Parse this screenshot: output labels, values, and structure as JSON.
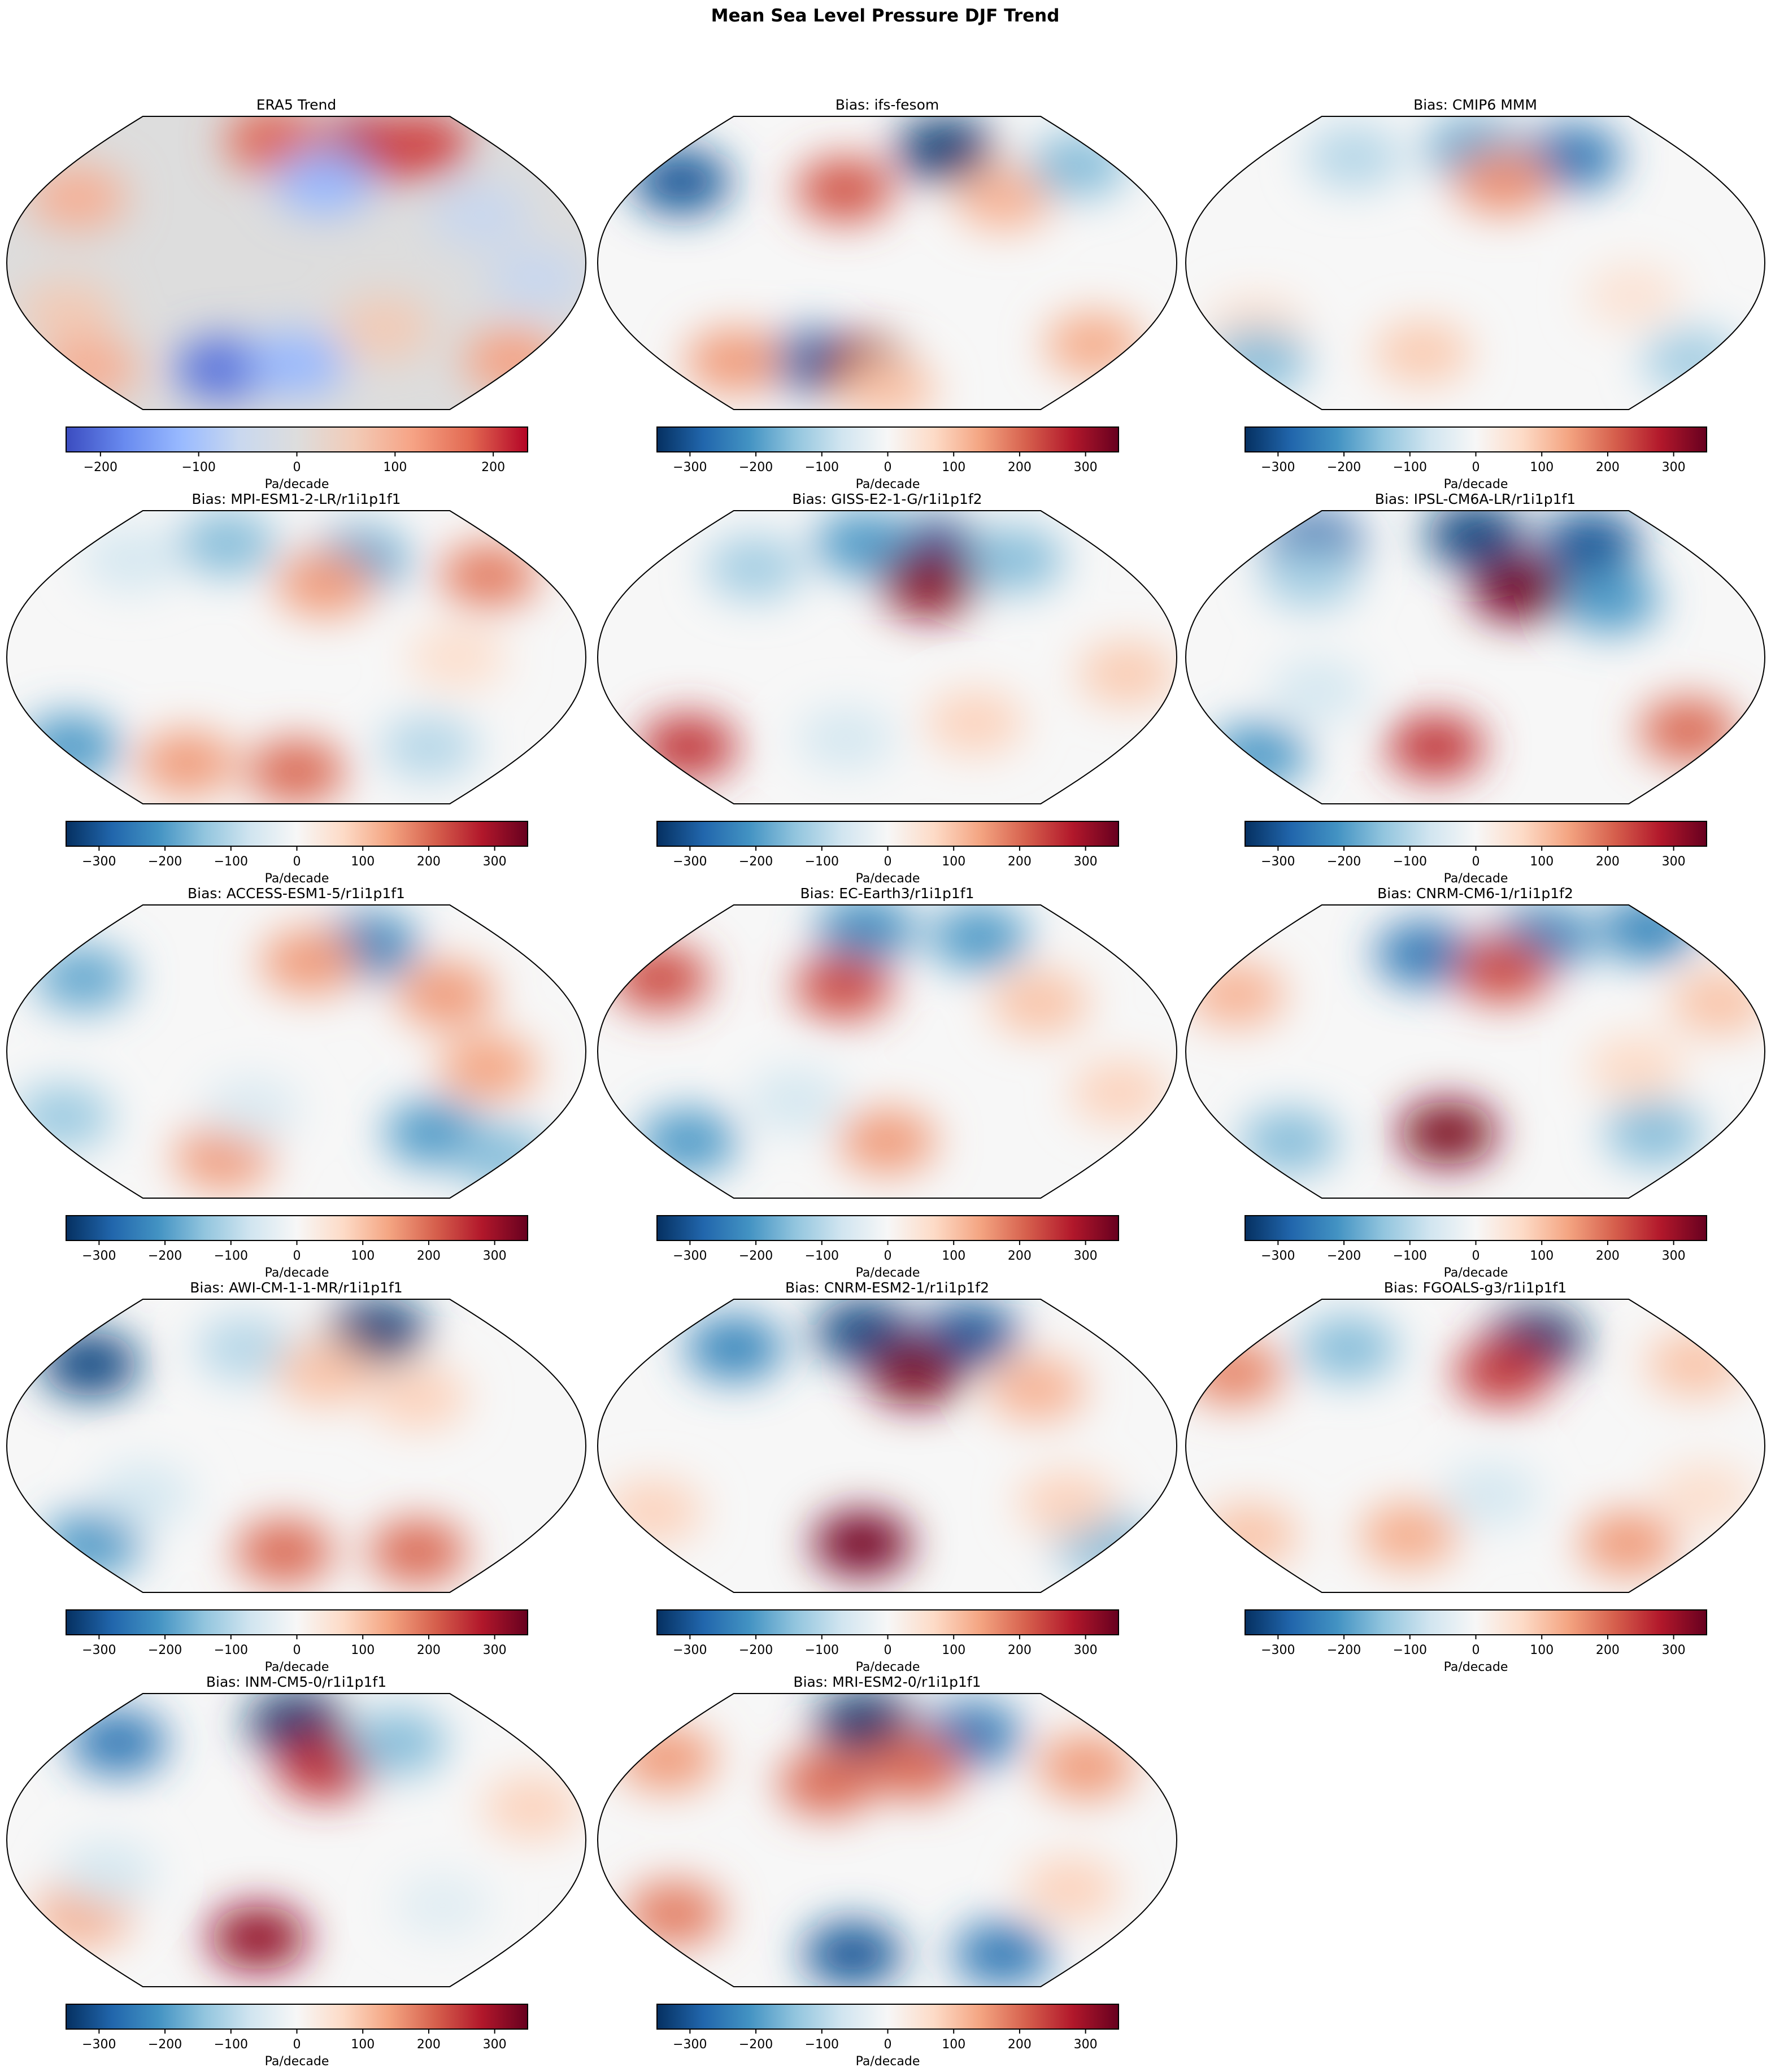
{
  "figure": {
    "title": "Mean Sea Level Pressure DJF Trend"
  },
  "colormaps": {
    "coolwarm": [
      "#3b4cc0",
      "#688aef",
      "#99baff",
      "#c9d8ef",
      "#dddddd",
      "#f2cbb7",
      "#f6a385",
      "#e26952",
      "#b40426"
    ],
    "RdBu_r": [
      "#053061",
      "#2166ac",
      "#4393c3",
      "#92c5de",
      "#d1e5f0",
      "#f7f7f7",
      "#fddbc7",
      "#f4a582",
      "#d6604d",
      "#b2182b",
      "#67001f"
    ]
  },
  "chart_data": [
    {
      "type": "heatmap",
      "title": "ERA5 Trend",
      "colormap": "coolwarm",
      "vmin": -235,
      "vmax": 235,
      "ticks": [
        "-200",
        "-100",
        "0",
        "100",
        "200"
      ],
      "tick_values": [
        -200,
        -100,
        0,
        100,
        200
      ],
      "colorbar_label": "Pa/decade",
      "features": [
        {
          "lon": 60,
          "lat": 70,
          "value": 230
        },
        {
          "lon": -20,
          "lat": 75,
          "value": 180
        },
        {
          "lon": 110,
          "lat": 72,
          "value": 200
        },
        {
          "lon": -150,
          "lat": 40,
          "value": 100
        },
        {
          "lon": 20,
          "lat": 50,
          "value": -120
        },
        {
          "lon": 120,
          "lat": 30,
          "value": -60
        },
        {
          "lon": -60,
          "lat": -65,
          "value": -200
        },
        {
          "lon": 0,
          "lat": -62,
          "value": -120
        },
        {
          "lon": 150,
          "lat": -10,
          "value": -60
        },
        {
          "lon": -150,
          "lat": -30,
          "value": 60
        },
        {
          "lon": 60,
          "lat": -40,
          "value": 60
        },
        {
          "lon": 170,
          "lat": -60,
          "value": 120
        },
        {
          "lon": -170,
          "lat": -65,
          "value": 100
        }
      ]
    },
    {
      "type": "heatmap",
      "title": "Bias: ifs-fesom",
      "colormap": "RdBu_r",
      "vmin": -350,
      "vmax": 350,
      "ticks": [
        "-300",
        "-200",
        "-100",
        "0",
        "100",
        "200",
        "300"
      ],
      "tick_values": [
        -300,
        -200,
        -100,
        0,
        100,
        200,
        300
      ],
      "colorbar_label": "Pa/decade",
      "features": [
        {
          "lon": 50,
          "lat": 70,
          "value": -330
        },
        {
          "lon": -150,
          "lat": 50,
          "value": -300
        },
        {
          "lon": -30,
          "lat": 45,
          "value": 220
        },
        {
          "lon": 80,
          "lat": 40,
          "value": 120
        },
        {
          "lon": -60,
          "lat": -60,
          "value": -250
        },
        {
          "lon": -20,
          "lat": -65,
          "value": 320
        },
        {
          "lon": -120,
          "lat": -60,
          "value": 150
        },
        {
          "lon": 150,
          "lat": -50,
          "value": 130
        },
        {
          "lon": 150,
          "lat": 60,
          "value": -150
        },
        {
          "lon": 0,
          "lat": -78,
          "value": 100
        }
      ]
    },
    {
      "type": "heatmap",
      "title": "Bias: CMIP6 MMM",
      "colormap": "RdBu_r",
      "vmin": -350,
      "vmax": 350,
      "ticks": [
        "-300",
        "-200",
        "-100",
        "0",
        "100",
        "200",
        "300"
      ],
      "tick_values": [
        -300,
        -200,
        -100,
        0,
        100,
        200,
        300
      ],
      "colorbar_label": "Pa/decade",
      "features": [
        {
          "lon": 80,
          "lat": 65,
          "value": -250
        },
        {
          "lon": 0,
          "lat": 70,
          "value": -180
        },
        {
          "lon": 20,
          "lat": 50,
          "value": 160
        },
        {
          "lon": -100,
          "lat": 65,
          "value": -100
        },
        {
          "lon": -150,
          "lat": -40,
          "value": 60
        },
        {
          "lon": -40,
          "lat": -55,
          "value": 90
        },
        {
          "lon": 100,
          "lat": -20,
          "value": 50
        },
        {
          "lon": -170,
          "lat": -60,
          "value": -150
        },
        {
          "lon": 170,
          "lat": -60,
          "value": -120
        }
      ]
    },
    {
      "type": "heatmap",
      "title": "Bias: MPI-ESM1-2-LR/r1i1p1f1",
      "colormap": "RdBu_r",
      "vmin": -350,
      "vmax": 350,
      "ticks": [
        "-300",
        "-200",
        "-100",
        "0",
        "100",
        "200",
        "300"
      ],
      "tick_values": [
        -300,
        -200,
        -100,
        0,
        100,
        200,
        300
      ],
      "colorbar_label": "Pa/decade",
      "features": [
        {
          "lon": -60,
          "lat": 70,
          "value": -150
        },
        {
          "lon": 50,
          "lat": 60,
          "value": -180
        },
        {
          "lon": 20,
          "lat": 45,
          "value": 150
        },
        {
          "lon": 140,
          "lat": 50,
          "value": 180
        },
        {
          "lon": -130,
          "lat": 60,
          "value": -60
        },
        {
          "lon": 0,
          "lat": -70,
          "value": 200
        },
        {
          "lon": -90,
          "lat": -65,
          "value": 150
        },
        {
          "lon": -170,
          "lat": -55,
          "value": -200
        },
        {
          "lon": 100,
          "lat": -55,
          "value": -100
        },
        {
          "lon": 100,
          "lat": 0,
          "value": 60
        }
      ]
    },
    {
      "type": "heatmap",
      "title": "Bias: GISS-E2-1-G/r1i1p1f2",
      "colormap": "RdBu_r",
      "vmin": -350,
      "vmax": 350,
      "ticks": [
        "-300",
        "-200",
        "-100",
        "0",
        "100",
        "200",
        "300"
      ],
      "tick_values": [
        -300,
        -200,
        -100,
        0,
        100,
        200,
        300
      ],
      "colorbar_label": "Pa/decade",
      "features": [
        {
          "lon": 40,
          "lat": 65,
          "value": -300
        },
        {
          "lon": -20,
          "lat": 70,
          "value": -200
        },
        {
          "lon": 30,
          "lat": 45,
          "value": 320
        },
        {
          "lon": -150,
          "lat": -55,
          "value": 250
        },
        {
          "lon": -100,
          "lat": 55,
          "value": -120
        },
        {
          "lon": 100,
          "lat": 60,
          "value": -150
        },
        {
          "lon": 60,
          "lat": -40,
          "value": 80
        },
        {
          "lon": 150,
          "lat": -10,
          "value": 90
        },
        {
          "lon": -30,
          "lat": -50,
          "value": -60
        }
      ]
    },
    {
      "type": "heatmap",
      "title": "Bias: IPSL-CM6A-LR/r1i1p1f1",
      "colormap": "RdBu_r",
      "vmin": -350,
      "vmax": 350,
      "ticks": [
        "-300",
        "-200",
        "-100",
        "0",
        "100",
        "200",
        "300"
      ],
      "tick_values": [
        -300,
        -200,
        -100,
        0,
        100,
        200,
        300
      ],
      "colorbar_label": "Pa/decade",
      "features": [
        {
          "lon": 0,
          "lat": 75,
          "value": -320
        },
        {
          "lon": 100,
          "lat": 70,
          "value": -300
        },
        {
          "lon": -140,
          "lat": 70,
          "value": -280
        },
        {
          "lon": 30,
          "lat": 42,
          "value": 340
        },
        {
          "lon": -120,
          "lat": 50,
          "value": -120
        },
        {
          "lon": -30,
          "lat": -55,
          "value": 250
        },
        {
          "lon": 150,
          "lat": -45,
          "value": 200
        },
        {
          "lon": -170,
          "lat": -60,
          "value": -200
        },
        {
          "lon": 90,
          "lat": 35,
          "value": -200
        },
        {
          "lon": -100,
          "lat": -20,
          "value": -60
        }
      ]
    },
    {
      "type": "heatmap",
      "title": "Bias: ACCESS-ESM1-5/r1i1p1f1",
      "colormap": "RdBu_r",
      "vmin": -350,
      "vmax": 350,
      "ticks": [
        "-300",
        "-200",
        "-100",
        "0",
        "100",
        "200",
        "300"
      ],
      "tick_values": [
        -300,
        -200,
        -100,
        0,
        100,
        200,
        300
      ],
      "colorbar_label": "Pa/decade",
      "features": [
        {
          "lon": 60,
          "lat": 65,
          "value": -230
        },
        {
          "lon": -150,
          "lat": 45,
          "value": -180
        },
        {
          "lon": 10,
          "lat": 55,
          "value": 150
        },
        {
          "lon": 100,
          "lat": 35,
          "value": 150
        },
        {
          "lon": 120,
          "lat": -10,
          "value": 140
        },
        {
          "lon": -60,
          "lat": -65,
          "value": 150
        },
        {
          "lon": 100,
          "lat": -50,
          "value": -200
        },
        {
          "lon": -160,
          "lat": -40,
          "value": -130
        },
        {
          "lon": 170,
          "lat": -65,
          "value": -150
        },
        {
          "lon": -30,
          "lat": -35,
          "value": -50
        }
      ]
    },
    {
      "type": "heatmap",
      "title": "Bias: EC-Earth3/r1i1p1f1",
      "colormap": "RdBu_r",
      "vmin": -350,
      "vmax": 350,
      "ticks": [
        "-300",
        "-200",
        "-100",
        "0",
        "100",
        "200",
        "300"
      ],
      "tick_values": [
        -300,
        -200,
        -100,
        0,
        100,
        200,
        300
      ],
      "colorbar_label": "Pa/decade",
      "features": [
        {
          "lon": -20,
          "lat": 75,
          "value": -220
        },
        {
          "lon": 80,
          "lat": 70,
          "value": -200
        },
        {
          "lon": -160,
          "lat": 45,
          "value": 230
        },
        {
          "lon": -30,
          "lat": 40,
          "value": 230
        },
        {
          "lon": 100,
          "lat": 30,
          "value": 100
        },
        {
          "lon": -150,
          "lat": -55,
          "value": -200
        },
        {
          "lon": 0,
          "lat": -55,
          "value": 150
        },
        {
          "lon": 150,
          "lat": -25,
          "value": 80
        },
        {
          "lon": -60,
          "lat": -30,
          "value": -60
        }
      ]
    },
    {
      "type": "heatmap",
      "title": "Bias: CNRM-CM6-1/r1i1p1f2",
      "colormap": "RdBu_r",
      "vmin": -350,
      "vmax": 350,
      "ticks": [
        "-300",
        "-200",
        "-100",
        "0",
        "100",
        "200",
        "300"
      ],
      "tick_values": [
        -300,
        -200,
        -100,
        0,
        100,
        200,
        300
      ],
      "colorbar_label": "Pa/decade",
      "features": [
        {
          "lon": -40,
          "lat": 60,
          "value": -250
        },
        {
          "lon": 60,
          "lat": 70,
          "value": -230
        },
        {
          "lon": 160,
          "lat": 75,
          "value": -230
        },
        {
          "lon": 20,
          "lat": 50,
          "value": 230
        },
        {
          "lon": -160,
          "lat": 35,
          "value": 120
        },
        {
          "lon": 160,
          "lat": 30,
          "value": 100
        },
        {
          "lon": -20,
          "lat": -50,
          "value": 330
        },
        {
          "lon": -140,
          "lat": -55,
          "value": -150
        },
        {
          "lon": 130,
          "lat": -50,
          "value": -150
        },
        {
          "lon": 100,
          "lat": -10,
          "value": 70
        }
      ]
    },
    {
      "type": "heatmap",
      "title": "Bias: AWI-CM-1-1-MR/r1i1p1f1",
      "colormap": "RdBu_r",
      "vmin": -350,
      "vmax": 350,
      "ticks": [
        "-300",
        "-200",
        "-100",
        "0",
        "100",
        "200",
        "300"
      ],
      "tick_values": [
        -300,
        -200,
        -100,
        0,
        100,
        200,
        300
      ],
      "colorbar_label": "Pa/decade",
      "features": [
        {
          "lon": -150,
          "lat": 50,
          "value": -320
        },
        {
          "lon": 70,
          "lat": 70,
          "value": -330
        },
        {
          "lon": -40,
          "lat": 60,
          "value": -100
        },
        {
          "lon": 20,
          "lat": 45,
          "value": 100
        },
        {
          "lon": -10,
          "lat": -65,
          "value": 200
        },
        {
          "lon": -160,
          "lat": -60,
          "value": -200
        },
        {
          "lon": 100,
          "lat": -65,
          "value": 200
        },
        {
          "lon": 80,
          "lat": 30,
          "value": 80
        },
        {
          "lon": -100,
          "lat": -30,
          "value": -60
        }
      ]
    },
    {
      "type": "heatmap",
      "title": "Bias: CNRM-ESM2-1/r1i1p1f2",
      "colormap": "RdBu_r",
      "vmin": -350,
      "vmax": 350,
      "ticks": [
        "-300",
        "-200",
        "-100",
        "0",
        "100",
        "200",
        "300"
      ],
      "tick_values": [
        -300,
        -200,
        -100,
        0,
        100,
        200,
        300
      ],
      "colorbar_label": "Pa/decade",
      "features": [
        {
          "lon": -20,
          "lat": 70,
          "value": -320
        },
        {
          "lon": 70,
          "lat": 68,
          "value": -300
        },
        {
          "lon": -120,
          "lat": 60,
          "value": -230
        },
        {
          "lon": 20,
          "lat": 45,
          "value": 330
        },
        {
          "lon": 100,
          "lat": 35,
          "value": 120
        },
        {
          "lon": -20,
          "lat": -60,
          "value": 340
        },
        {
          "lon": -160,
          "lat": -40,
          "value": 80
        },
        {
          "lon": 170,
          "lat": -60,
          "value": -150
        },
        {
          "lon": 120,
          "lat": -35,
          "value": 80
        }
      ]
    },
    {
      "type": "heatmap",
      "title": "Bias: FGOALS-g3/r1i1p1f1",
      "colormap": "RdBu_r",
      "vmin": -350,
      "vmax": 350,
      "ticks": [
        "-300",
        "-200",
        "-100",
        "0",
        "100",
        "200",
        "300"
      ],
      "tick_values": [
        -300,
        -200,
        -100,
        0,
        100,
        200,
        300
      ],
      "colorbar_label": "Pa/decade",
      "features": [
        {
          "lon": 50,
          "lat": 65,
          "value": -340
        },
        {
          "lon": -100,
          "lat": 60,
          "value": -150
        },
        {
          "lon": 20,
          "lat": 45,
          "value": 250
        },
        {
          "lon": -170,
          "lat": 45,
          "value": 170
        },
        {
          "lon": 160,
          "lat": 50,
          "value": 100
        },
        {
          "lon": -50,
          "lat": -55,
          "value": 130
        },
        {
          "lon": 120,
          "lat": -60,
          "value": 150
        },
        {
          "lon": -170,
          "lat": -55,
          "value": 100
        },
        {
          "lon": 10,
          "lat": -30,
          "value": -60
        },
        {
          "lon": 150,
          "lat": -30,
          "value": 60
        }
      ]
    },
    {
      "type": "heatmap",
      "title": "Bias: INM-CM5-0/r1i1p1f1",
      "colormap": "RdBu_r",
      "vmin": -350,
      "vmax": 350,
      "ticks": [
        "-300",
        "-200",
        "-100",
        "0",
        "100",
        "200",
        "300"
      ],
      "tick_values": [
        -300,
        -200,
        -100,
        0,
        100,
        200,
        300
      ],
      "colorbar_label": "Pa/decade",
      "features": [
        {
          "lon": 0,
          "lat": 72,
          "value": -340
        },
        {
          "lon": -140,
          "lat": 60,
          "value": -250
        },
        {
          "lon": 20,
          "lat": 45,
          "value": 260
        },
        {
          "lon": 80,
          "lat": 60,
          "value": -150
        },
        {
          "lon": -30,
          "lat": -60,
          "value": 310
        },
        {
          "lon": -150,
          "lat": -45,
          "value": 130
        },
        {
          "lon": 150,
          "lat": 20,
          "value": 80
        },
        {
          "lon": -120,
          "lat": -20,
          "value": -60
        },
        {
          "lon": 100,
          "lat": -40,
          "value": -40
        }
      ]
    },
    {
      "type": "heatmap",
      "title": "Bias: MRI-ESM2-0/r1i1p1f1",
      "colormap": "RdBu_r",
      "vmin": -350,
      "vmax": 350,
      "ticks": [
        "-300",
        "-200",
        "-100",
        "0",
        "100",
        "200",
        "300"
      ],
      "tick_values": [
        -300,
        -200,
        -100,
        0,
        100,
        200,
        300
      ],
      "colorbar_label": "Pa/decade",
      "features": [
        {
          "lon": -20,
          "lat": 72,
          "value": -340
        },
        {
          "lon": 70,
          "lat": 65,
          "value": -250
        },
        {
          "lon": -160,
          "lat": 50,
          "value": 150
        },
        {
          "lon": -40,
          "lat": 35,
          "value": 200
        },
        {
          "lon": 20,
          "lat": 45,
          "value": 200
        },
        {
          "lon": 140,
          "lat": 45,
          "value": 150
        },
        {
          "lon": -30,
          "lat": -70,
          "value": -300
        },
        {
          "lon": 100,
          "lat": -70,
          "value": -250
        },
        {
          "lon": -150,
          "lat": -45,
          "value": 180
        },
        {
          "lon": 120,
          "lat": -30,
          "value": 80
        }
      ]
    }
  ]
}
